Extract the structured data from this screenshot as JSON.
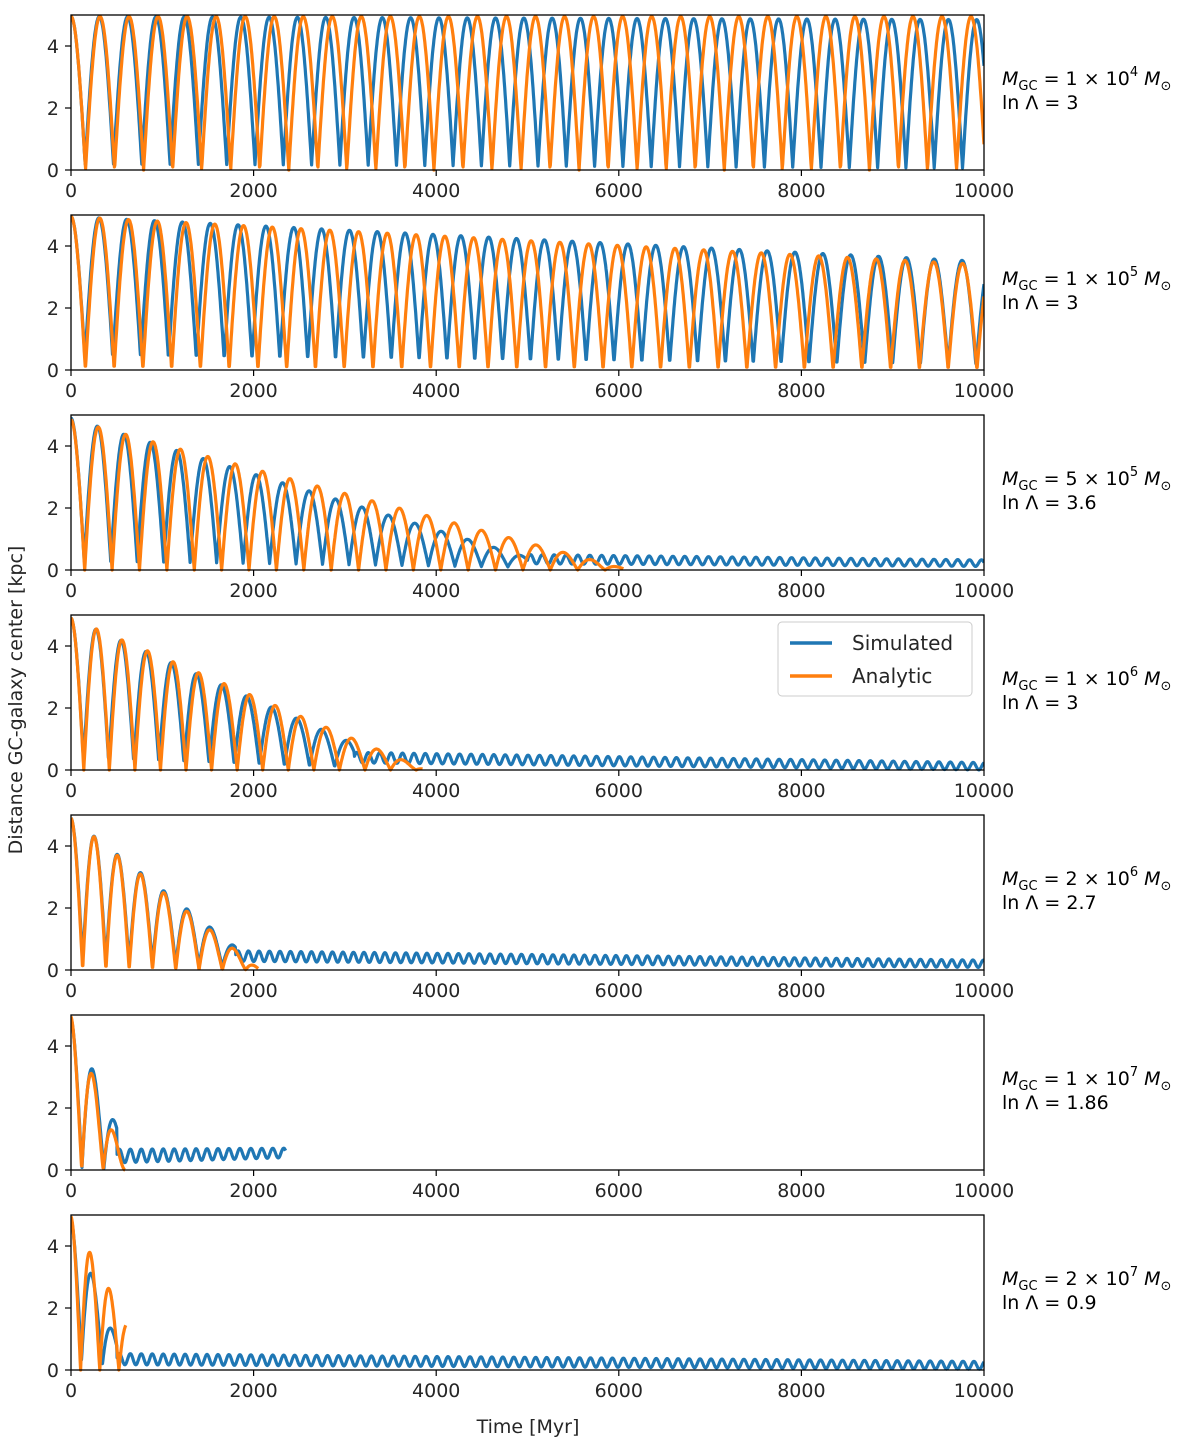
{
  "chart_data": {
    "type": "line",
    "xlabel": "Time [Myr]",
    "ylabel": "Distance GC-galaxy center [kpc]",
    "xlim": [
      0,
      10000
    ],
    "ylim": [
      0,
      5
    ],
    "xticks": [
      "0",
      "2000",
      "4000",
      "6000",
      "8000",
      "10000"
    ],
    "yticks": [
      "0",
      "2",
      "4"
    ],
    "legend": {
      "placement": "inside panel 4, top-right",
      "entries": [
        "Simulated",
        "Analytic"
      ]
    },
    "colors": {
      "simulated": "#1f77b4",
      "analytic": "#ff7f0e",
      "axes": "#000000",
      "text": "#262626"
    },
    "panels": [
      {
        "mass_text": "M_GC = 1 × 10^4 M⊙",
        "mass_coef": "1",
        "mass_exp": "4",
        "lnL": "3",
        "lnL_text": "ln Λ = 3",
        "sim": {
          "period": 310,
          "rmin_start": 0.2,
          "rmax_start": 4.95,
          "rmax_end": 4.85,
          "end_time": 10000
        },
        "ana": {
          "period": 318,
          "rmin_start": 0.0,
          "rmax_start": 4.95,
          "rmax_end": 4.95,
          "end_time": 10000
        }
      },
      {
        "mass_text": "M_GC = 1 × 10^5 M⊙",
        "mass_coef": "1",
        "mass_exp": "5",
        "lnL": "3",
        "lnL_text": "ln Λ = 3",
        "sim": {
          "period": 305,
          "rmin_start": 0.4,
          "rmax_start": 4.95,
          "rmax_end": 3.5,
          "end_time": 10000
        },
        "ana": {
          "period": 315,
          "rmin_start": 0.0,
          "rmax_start": 4.95,
          "rmax_end": 3.4,
          "end_time": 10000
        }
      },
      {
        "mass_text": "M_GC = 5 × 10^5 M⊙",
        "mass_coef": "5",
        "mass_exp": "5",
        "lnL": "3.6",
        "lnL_text": "ln Λ = 3.6",
        "sim": {
          "period": 290,
          "rmin_start": 0.3,
          "rmax_start": 4.9,
          "rmax_end": 0.4,
          "decay_time": 5000,
          "tail_level": 0.35,
          "tail_end_level": 0.22,
          "tail_amp": 0.15,
          "tail_period": 130,
          "end_time": 10000
        },
        "ana": {
          "period": 300,
          "rmin_start": 0.0,
          "rmax_start": 4.85,
          "rmax_end": 0.05,
          "end_time": 6050
        }
      },
      {
        "mass_text": "M_GC = 1 × 10^6 M⊙",
        "mass_coef": "1",
        "mass_exp": "6",
        "lnL": "3",
        "lnL_text": "ln Λ = 3",
        "sim": {
          "period": 275,
          "rmin_start": 0.3,
          "rmax_start": 4.9,
          "rmax_end": 0.85,
          "decay_time": 3100,
          "tail_level": 0.4,
          "tail_end_level": 0.12,
          "tail_amp": 0.17,
          "tail_period": 125,
          "end_time": 10000
        },
        "ana": {
          "period": 280,
          "rmin_start": 0.0,
          "rmax_start": 4.9,
          "rmax_end": 0.05,
          "end_time": 3850
        }
      },
      {
        "mass_text": "M_GC = 2 × 10^6 M⊙",
        "mass_coef": "2",
        "mass_exp": "6",
        "lnL": "2.7",
        "lnL_text": "ln Λ = 2.7",
        "sim": {
          "period": 255,
          "rmin_start": 0.3,
          "rmax_start": 4.9,
          "rmax_end": 0.75,
          "decay_time": 1800,
          "tail_level": 0.45,
          "tail_end_level": 0.2,
          "tail_amp": 0.17,
          "tail_period": 115,
          "end_time": 10000
        },
        "ana": {
          "period": 255,
          "rmin_start": 0.0,
          "rmax_start": 4.9,
          "rmax_end": 0.05,
          "end_time": 2050
        }
      },
      {
        "mass_text": "M_GC = 1 × 10^7 M⊙",
        "mass_coef": "1",
        "mass_exp": "7",
        "lnL": "1.86",
        "lnL_text": "ln Λ = 1.86",
        "sim": {
          "period": 240,
          "rmin_start": 0.1,
          "rmax_start": 4.9,
          "rmax_end": 1.4,
          "decay_time": 500,
          "tail_level": 0.45,
          "tail_end_level": 0.55,
          "tail_amp": 0.22,
          "tail_period": 120,
          "end_time": 2350
        },
        "ana": {
          "period": 235,
          "rmin_start": 0.0,
          "rmax_start": 4.95,
          "rmax_end": 0.2,
          "end_time": 590
        }
      },
      {
        "mass_text": "M_GC = 2 × 10^7 M⊙",
        "mass_coef": "2",
        "mass_exp": "7",
        "lnL": "0.9",
        "lnL_text": "ln Λ = 0.9",
        "sim": {
          "period": 230,
          "rmin_start": 0.4,
          "rmax_start": 4.9,
          "rmax_end": 0.9,
          "decay_time": 500,
          "tail_level": 0.35,
          "tail_end_level": 0.15,
          "tail_amp": 0.18,
          "tail_period": 120,
          "end_time": 10000
        },
        "ana": {
          "period": 210,
          "rmin_start": 0.0,
          "rmax_start": 4.95,
          "rmax_end": 1.6,
          "end_time": 600
        }
      }
    ]
  }
}
